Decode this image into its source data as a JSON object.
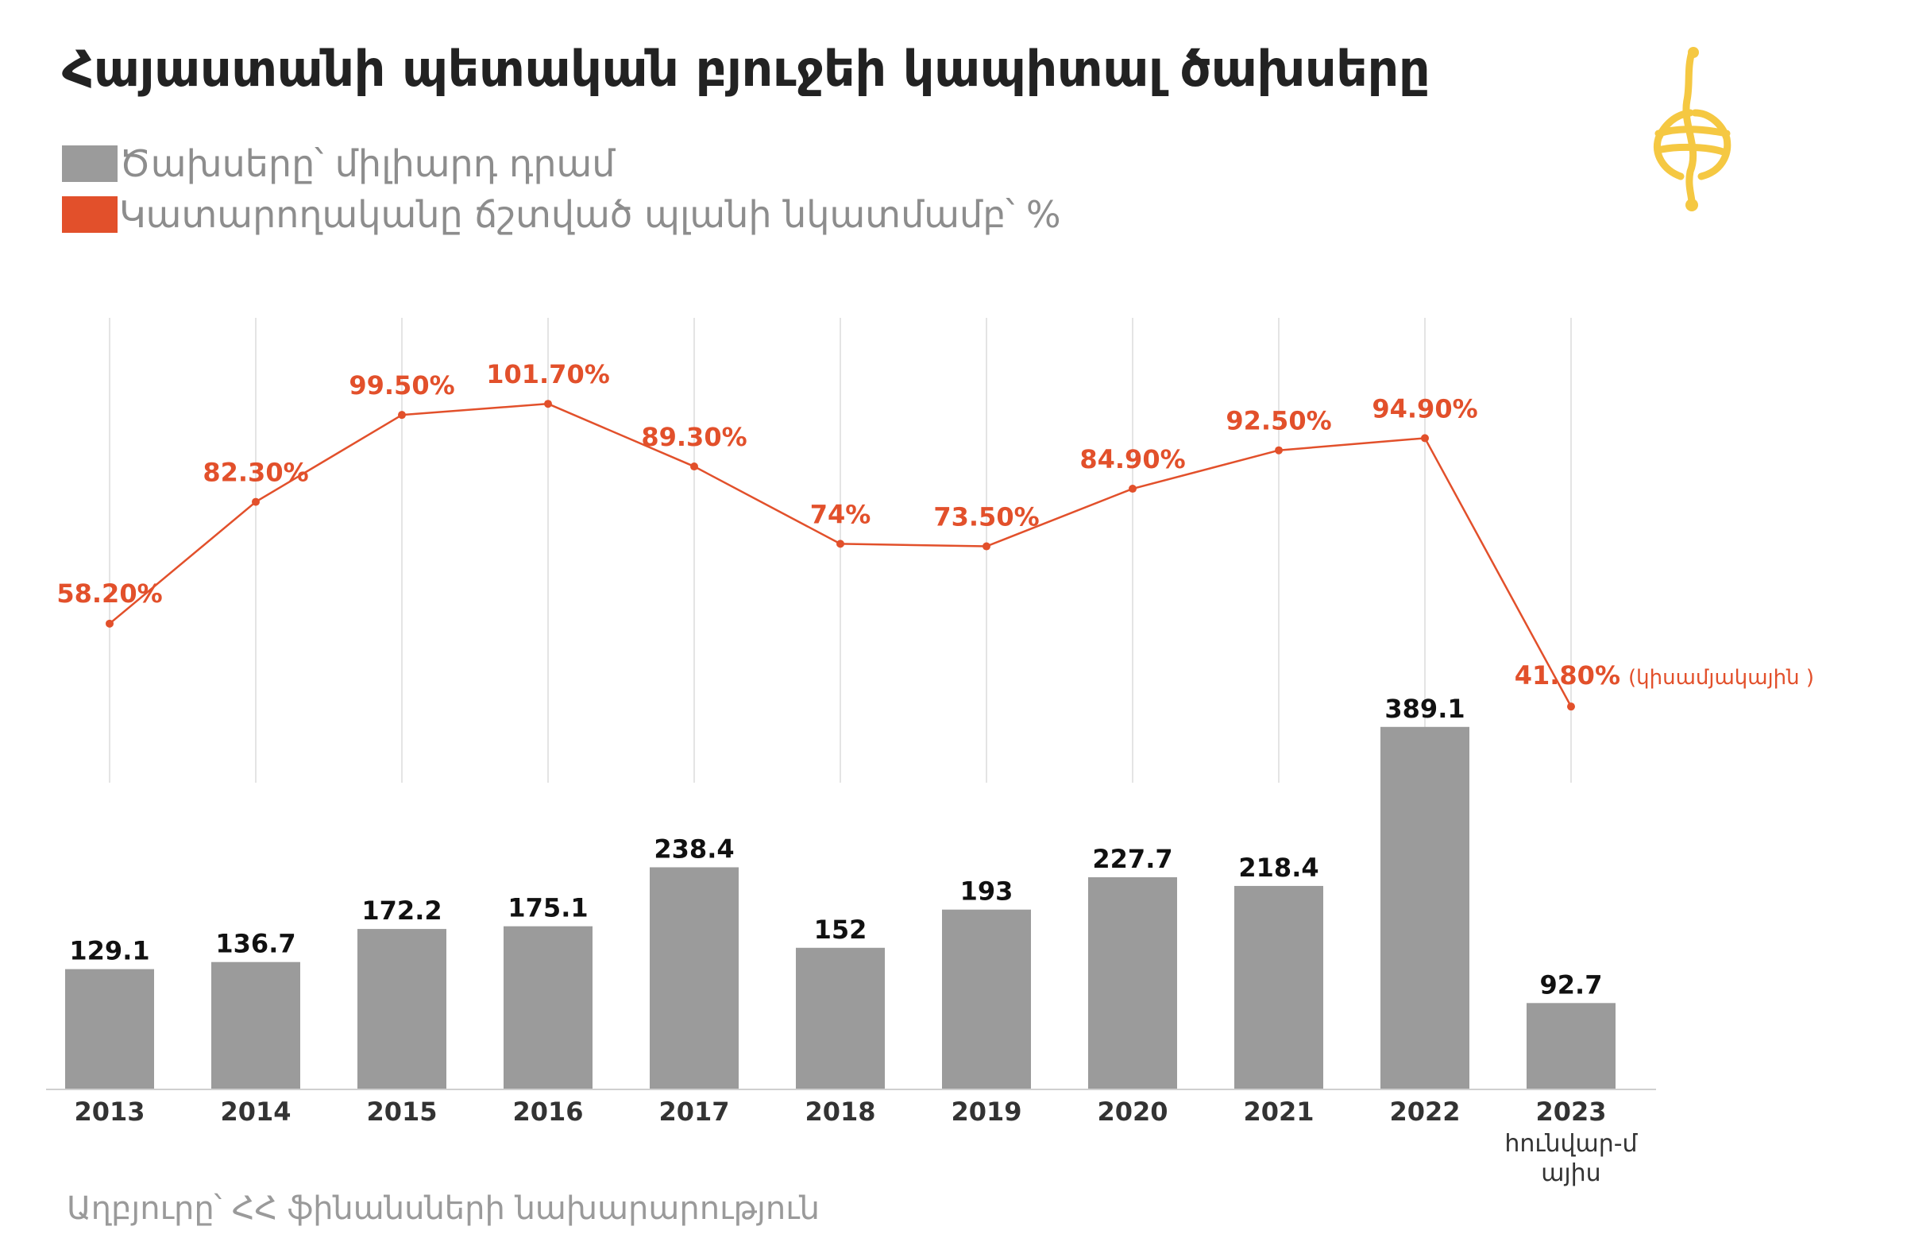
{
  "title": "Հայաստանի պետական բյուջեի կապիտալ ծախսերը",
  "source": "Աղբյուրը՝ ՀՀ ֆինանսների նախարարություն",
  "logo": {
    "icon": "globe-logo-icon",
    "color": "#f5c842"
  },
  "colors": {
    "bars": "#9b9b9b",
    "line": "#e2502b",
    "grid": "#e4e4e4",
    "axis": "#cfcfcf"
  },
  "chart_data": {
    "type": "bar",
    "categories": [
      "2013",
      "2014",
      "2015",
      "2016",
      "2017",
      "2018",
      "2019",
      "2020",
      "2021",
      "2022",
      "2023"
    ],
    "category_sublabels": [
      "",
      "",
      "",
      "",
      "",
      "",
      "",
      "",
      "",
      "",
      "հունվար-մ այիս"
    ],
    "series": [
      {
        "name": "Ծախսերը՝ միլիարդ դրամ",
        "type": "bar",
        "color": "#9b9b9b",
        "values": [
          129.1,
          136.7,
          172.2,
          175.1,
          238.4,
          152,
          193,
          227.7,
          218.4,
          389.1,
          92.7
        ],
        "labels": [
          "129.1",
          "136.7",
          "172.2",
          "175.1",
          "238.4",
          "152",
          "193",
          "227.7",
          "218.4",
          "389.1",
          "92.7"
        ]
      },
      {
        "name": "Կատարողականը ճշտված պլանի նկատմամբ՝ %",
        "type": "line",
        "color": "#e2502b",
        "values": [
          58.2,
          82.3,
          99.5,
          101.7,
          89.3,
          74,
          73.5,
          84.9,
          92.5,
          94.9,
          41.8
        ],
        "labels": [
          "58.20%",
          "82.30%",
          "99.50%",
          "101.70%",
          "89.30%",
          "74%",
          "73.50%",
          "84.90%",
          "92.50%",
          "94.90%",
          "41.80%"
        ],
        "annotation": {
          "index": 10,
          "text": "(կիսամյակային )"
        }
      }
    ],
    "legend_position": "top-left",
    "grid": true
  }
}
